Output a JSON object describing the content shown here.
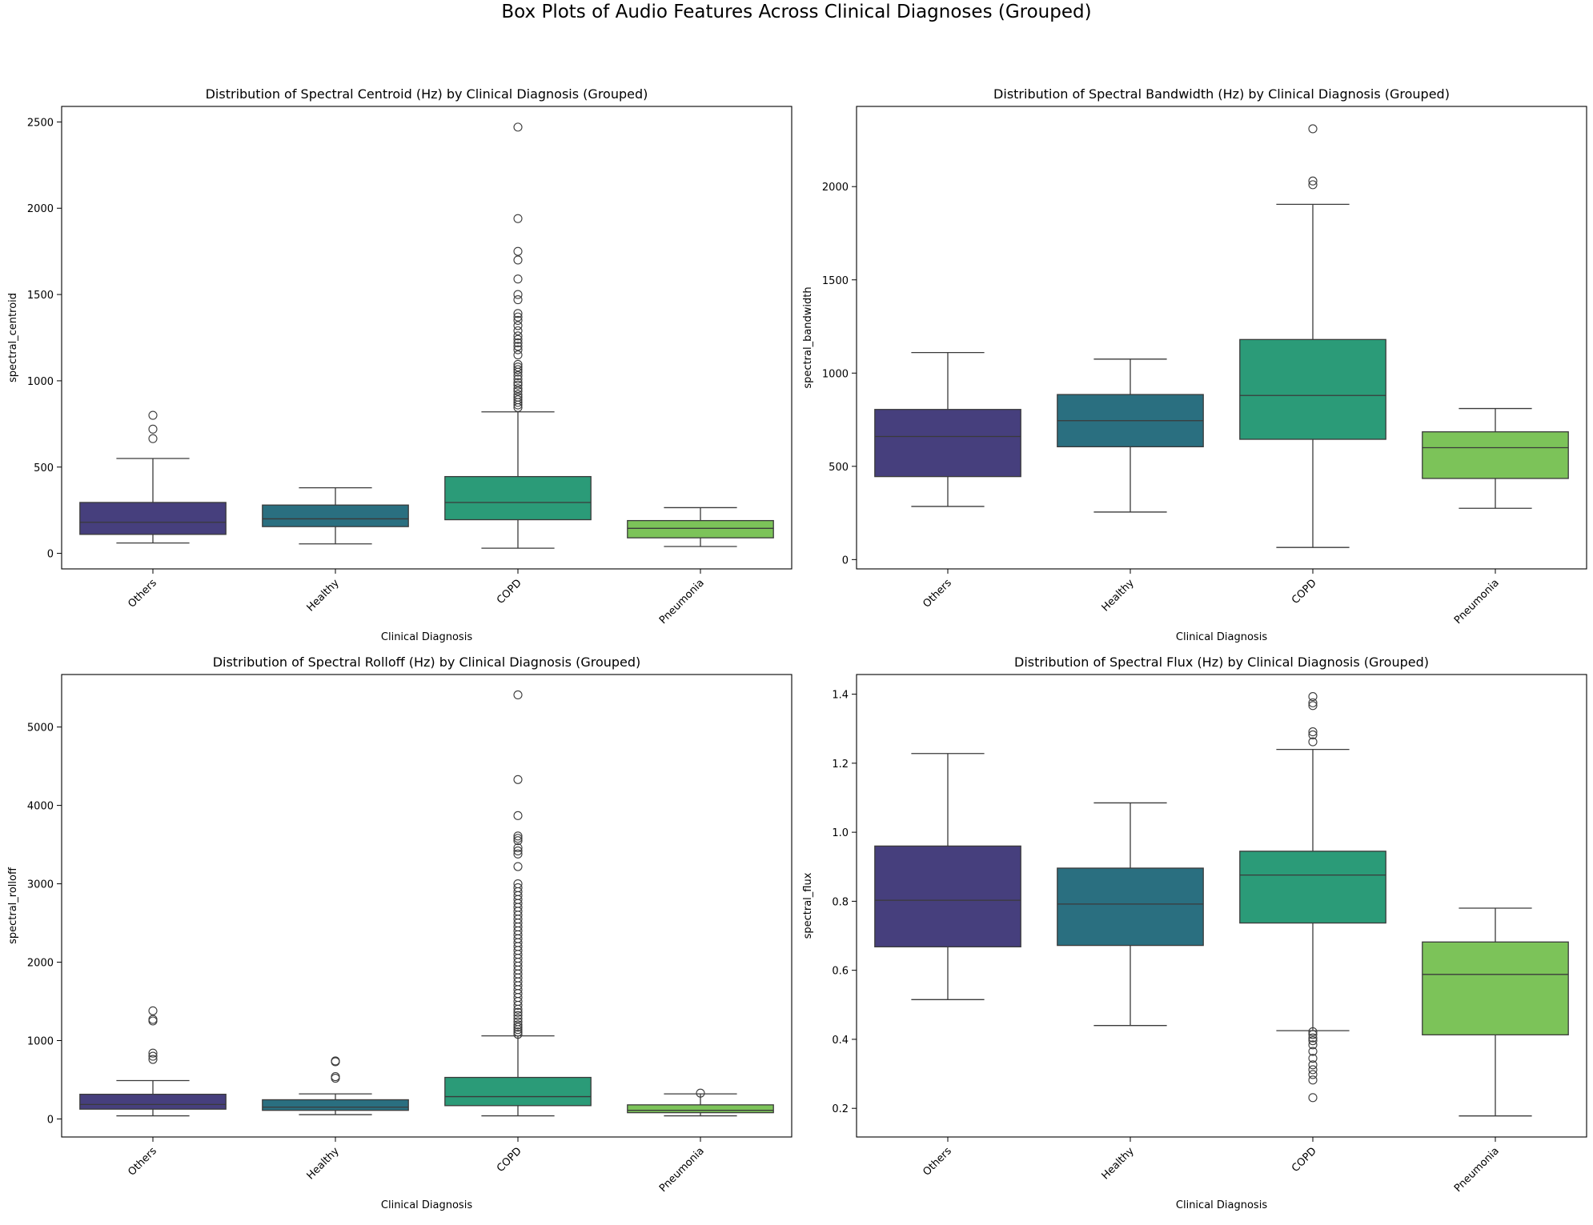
{
  "figure": {
    "title": "Box Plots of Audio Features Across Clinical Diagnoses (Grouped)"
  },
  "chart_data": [
    {
      "type": "box",
      "title": "Distribution of Spectral Centroid (Hz) by Clinical Diagnosis (Grouped)",
      "xlabel": "Clinical Diagnosis",
      "ylabel": "spectral_centroid",
      "categories": [
        "Others",
        "Healthy",
        "COPD",
        "Pneumonia"
      ],
      "colors": [
        "#463f7d",
        "#2a6f80",
        "#2b9b78",
        "#7cc359"
      ],
      "ylim": [
        -90,
        2590
      ],
      "yticks": [
        0,
        500,
        1000,
        1500,
        2000,
        2500
      ],
      "boxes": [
        {
          "q1": 110,
          "median": 180,
          "q3": 295,
          "whislo": 60,
          "whishi": 550,
          "fliers": [
            665,
            720,
            800
          ]
        },
        {
          "q1": 155,
          "median": 200,
          "q3": 280,
          "whislo": 55,
          "whishi": 380,
          "fliers": []
        },
        {
          "q1": 195,
          "median": 295,
          "q3": 445,
          "whislo": 30,
          "whishi": 820,
          "fliers": [
            845,
            860,
            875,
            890,
            905,
            920,
            940,
            955,
            975,
            990,
            1010,
            1030,
            1050,
            1065,
            1080,
            1095,
            1150,
            1180,
            1200,
            1220,
            1240,
            1260,
            1290,
            1320,
            1350,
            1370,
            1390,
            1470,
            1500,
            1590,
            1700,
            1750,
            1940,
            2470
          ]
        },
        {
          "q1": 90,
          "median": 145,
          "q3": 190,
          "whislo": 40,
          "whishi": 265,
          "fliers": []
        }
      ]
    },
    {
      "type": "box",
      "title": "Distribution of Spectral Bandwidth (Hz) by Clinical Diagnosis (Grouped)",
      "xlabel": "Clinical Diagnosis",
      "ylabel": "spectral_bandwidth",
      "categories": [
        "Others",
        "Healthy",
        "COPD",
        "Pneumonia"
      ],
      "colors": [
        "#463f7d",
        "#2a6f80",
        "#2b9b78",
        "#7cc359"
      ],
      "ylim": [
        -50,
        2430
      ],
      "yticks": [
        0,
        500,
        1000,
        1500,
        2000
      ],
      "boxes": [
        {
          "q1": 445,
          "median": 660,
          "q3": 805,
          "whislo": 285,
          "whishi": 1110,
          "fliers": []
        },
        {
          "q1": 605,
          "median": 745,
          "q3": 885,
          "whislo": 255,
          "whishi": 1075,
          "fliers": []
        },
        {
          "q1": 645,
          "median": 880,
          "q3": 1180,
          "whislo": 65,
          "whishi": 1905,
          "fliers": [
            2010,
            2030,
            2310
          ]
        },
        {
          "q1": 435,
          "median": 600,
          "q3": 685,
          "whislo": 275,
          "whishi": 810,
          "fliers": []
        }
      ]
    },
    {
      "type": "box",
      "title": "Distribution of Spectral Rolloff (Hz) by Clinical Diagnosis (Grouped)",
      "xlabel": "Clinical Diagnosis",
      "ylabel": "spectral_rolloff",
      "categories": [
        "Others",
        "Healthy",
        "COPD",
        "Pneumonia"
      ],
      "colors": [
        "#463f7d",
        "#2a6f80",
        "#2b9b78",
        "#7cc359"
      ],
      "ylim": [
        -230,
        5670
      ],
      "yticks": [
        0,
        1000,
        2000,
        3000,
        4000,
        5000
      ],
      "boxes": [
        {
          "q1": 125,
          "median": 185,
          "q3": 315,
          "whislo": 40,
          "whishi": 490,
          "fliers": [
            760,
            800,
            840,
            1250,
            1270,
            1380
          ]
        },
        {
          "q1": 110,
          "median": 150,
          "q3": 245,
          "whislo": 55,
          "whishi": 320,
          "fliers": [
            520,
            540,
            730,
            740
          ]
        },
        {
          "q1": 170,
          "median": 285,
          "q3": 530,
          "whislo": 40,
          "whishi": 1060,
          "fliers": [
            1080,
            1110,
            1140,
            1170,
            1200,
            1240,
            1280,
            1320,
            1360,
            1400,
            1450,
            1500,
            1550,
            1600,
            1650,
            1700,
            1750,
            1800,
            1850,
            1900,
            1950,
            2000,
            2050,
            2100,
            2150,
            2200,
            2250,
            2300,
            2350,
            2400,
            2450,
            2500,
            2550,
            2600,
            2650,
            2700,
            2750,
            2800,
            2850,
            2900,
            2950,
            3000,
            3220,
            3380,
            3420,
            3460,
            3550,
            3580,
            3610,
            3870,
            4330,
            5410
          ]
        },
        {
          "q1": 80,
          "median": 110,
          "q3": 180,
          "whislo": 40,
          "whishi": 320,
          "fliers": [
            330
          ]
        }
      ]
    },
    {
      "type": "box",
      "title": "Distribution of Spectral Flux (Hz) by Clinical Diagnosis (Grouped)",
      "xlabel": "Clinical Diagnosis",
      "ylabel": "spectral_flux",
      "categories": [
        "Others",
        "Healthy",
        "COPD",
        "Pneumonia"
      ],
      "colors": [
        "#463f7d",
        "#2a6f80",
        "#2b9b78",
        "#7cc359"
      ],
      "ylim": [
        0.117,
        1.457
      ],
      "yticks": [
        0.2,
        0.4,
        0.6,
        0.8,
        1.0,
        1.2,
        1.4
      ],
      "tickDecimals": 1,
      "boxes": [
        {
          "q1": 0.668,
          "median": 0.803,
          "q3": 0.96,
          "whislo": 0.515,
          "whishi": 1.228,
          "fliers": []
        },
        {
          "q1": 0.672,
          "median": 0.792,
          "q3": 0.896,
          "whislo": 0.44,
          "whishi": 1.085,
          "fliers": []
        },
        {
          "q1": 0.737,
          "median": 0.876,
          "q3": 0.945,
          "whislo": 0.425,
          "whishi": 1.24,
          "fliers": [
            1.262,
            1.282,
            1.291,
            1.367,
            1.375,
            1.393,
            0.422,
            0.414,
            0.404,
            0.396,
            0.384,
            0.365,
            0.345,
            0.326,
            0.312,
            0.298,
            0.282,
            0.231
          ]
        },
        {
          "q1": 0.413,
          "median": 0.588,
          "q3": 0.682,
          "whislo": 0.178,
          "whishi": 0.78,
          "fliers": []
        }
      ]
    }
  ]
}
